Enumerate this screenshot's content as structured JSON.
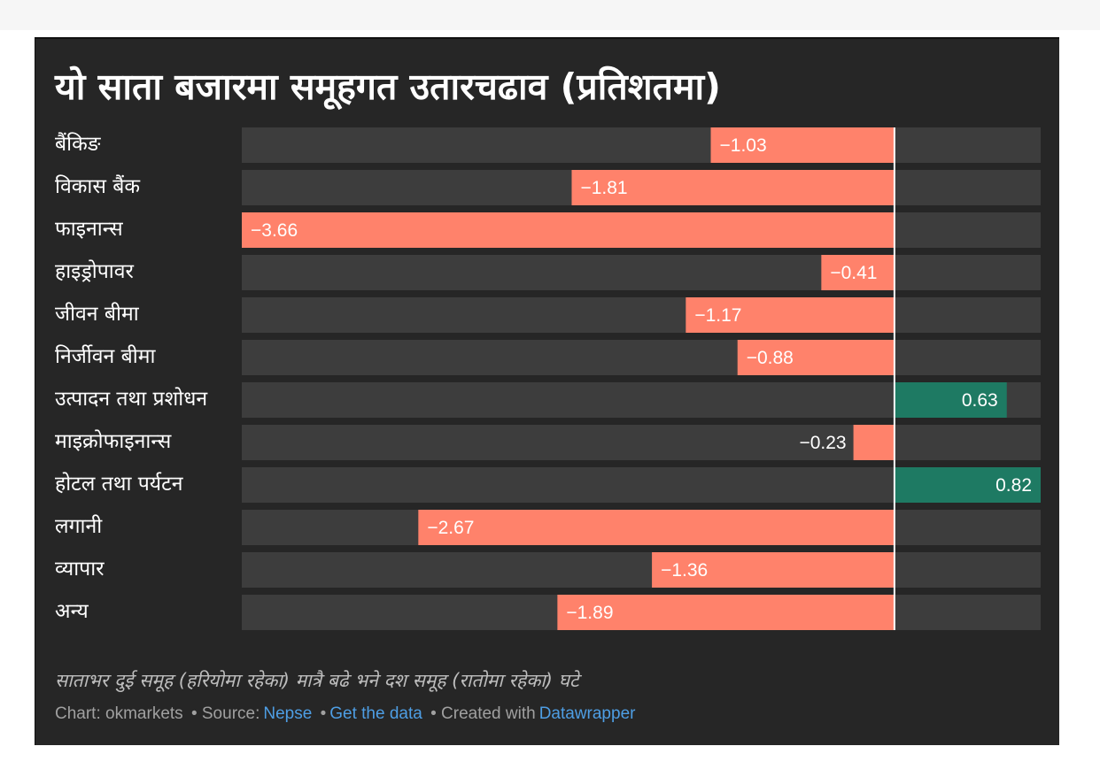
{
  "title": "यो साता बजारमा समूहगत उतारचढाव (प्रतिशतमा)",
  "description": "साताभर दुई समूह (हरियोमा रहेका) मात्रै बढे भने दश समूह (रातोमा रहेका) घटे",
  "footer": {
    "chart_prefix": "Chart:",
    "chart_by": "okmarkets",
    "source_prefix": "• Source:",
    "source_link": "Nepse",
    "bullet": "•",
    "data_link": "Get the data",
    "created_prefix": "• Created with",
    "created_link": "Datawrapper"
  },
  "colors": {
    "background": "#262626",
    "track": "#3d3d3d",
    "negative": "#ff826b",
    "positive": "#1e7a63",
    "zero_line": "#ffffff",
    "link": "#4e9ee4"
  },
  "chart_data": {
    "type": "bar",
    "orientation": "horizontal",
    "title": "यो साता बजारमा समूहगत उतारचढाव (प्रतिशतमा)",
    "categories": [
      "बैंकिङ",
      "विकास बैंक",
      "फाइनान्स",
      "हाइड्रोपावर",
      "जीवन बीमा",
      "निर्जीवन बीमा",
      "उत्पादन तथा प्रशोधन",
      "माइक्रोफाइनान्स",
      "होटल तथा पर्यटन",
      "लगानी",
      "व्यापार",
      "अन्य"
    ],
    "values": [
      -1.03,
      -1.81,
      -3.66,
      -0.41,
      -1.17,
      -0.88,
      0.63,
      -0.23,
      0.82,
      -2.67,
      -1.36,
      -1.89
    ],
    "labels": [
      "−1.03",
      "−1.81",
      "−3.66",
      "−0.41",
      "−1.17",
      "−0.88",
      "0.63",
      "−0.23",
      "0.82",
      "−2.67",
      "−1.36",
      "−1.89"
    ],
    "xlim": [
      -3.66,
      0.82
    ],
    "grid": false,
    "legend": "none"
  }
}
